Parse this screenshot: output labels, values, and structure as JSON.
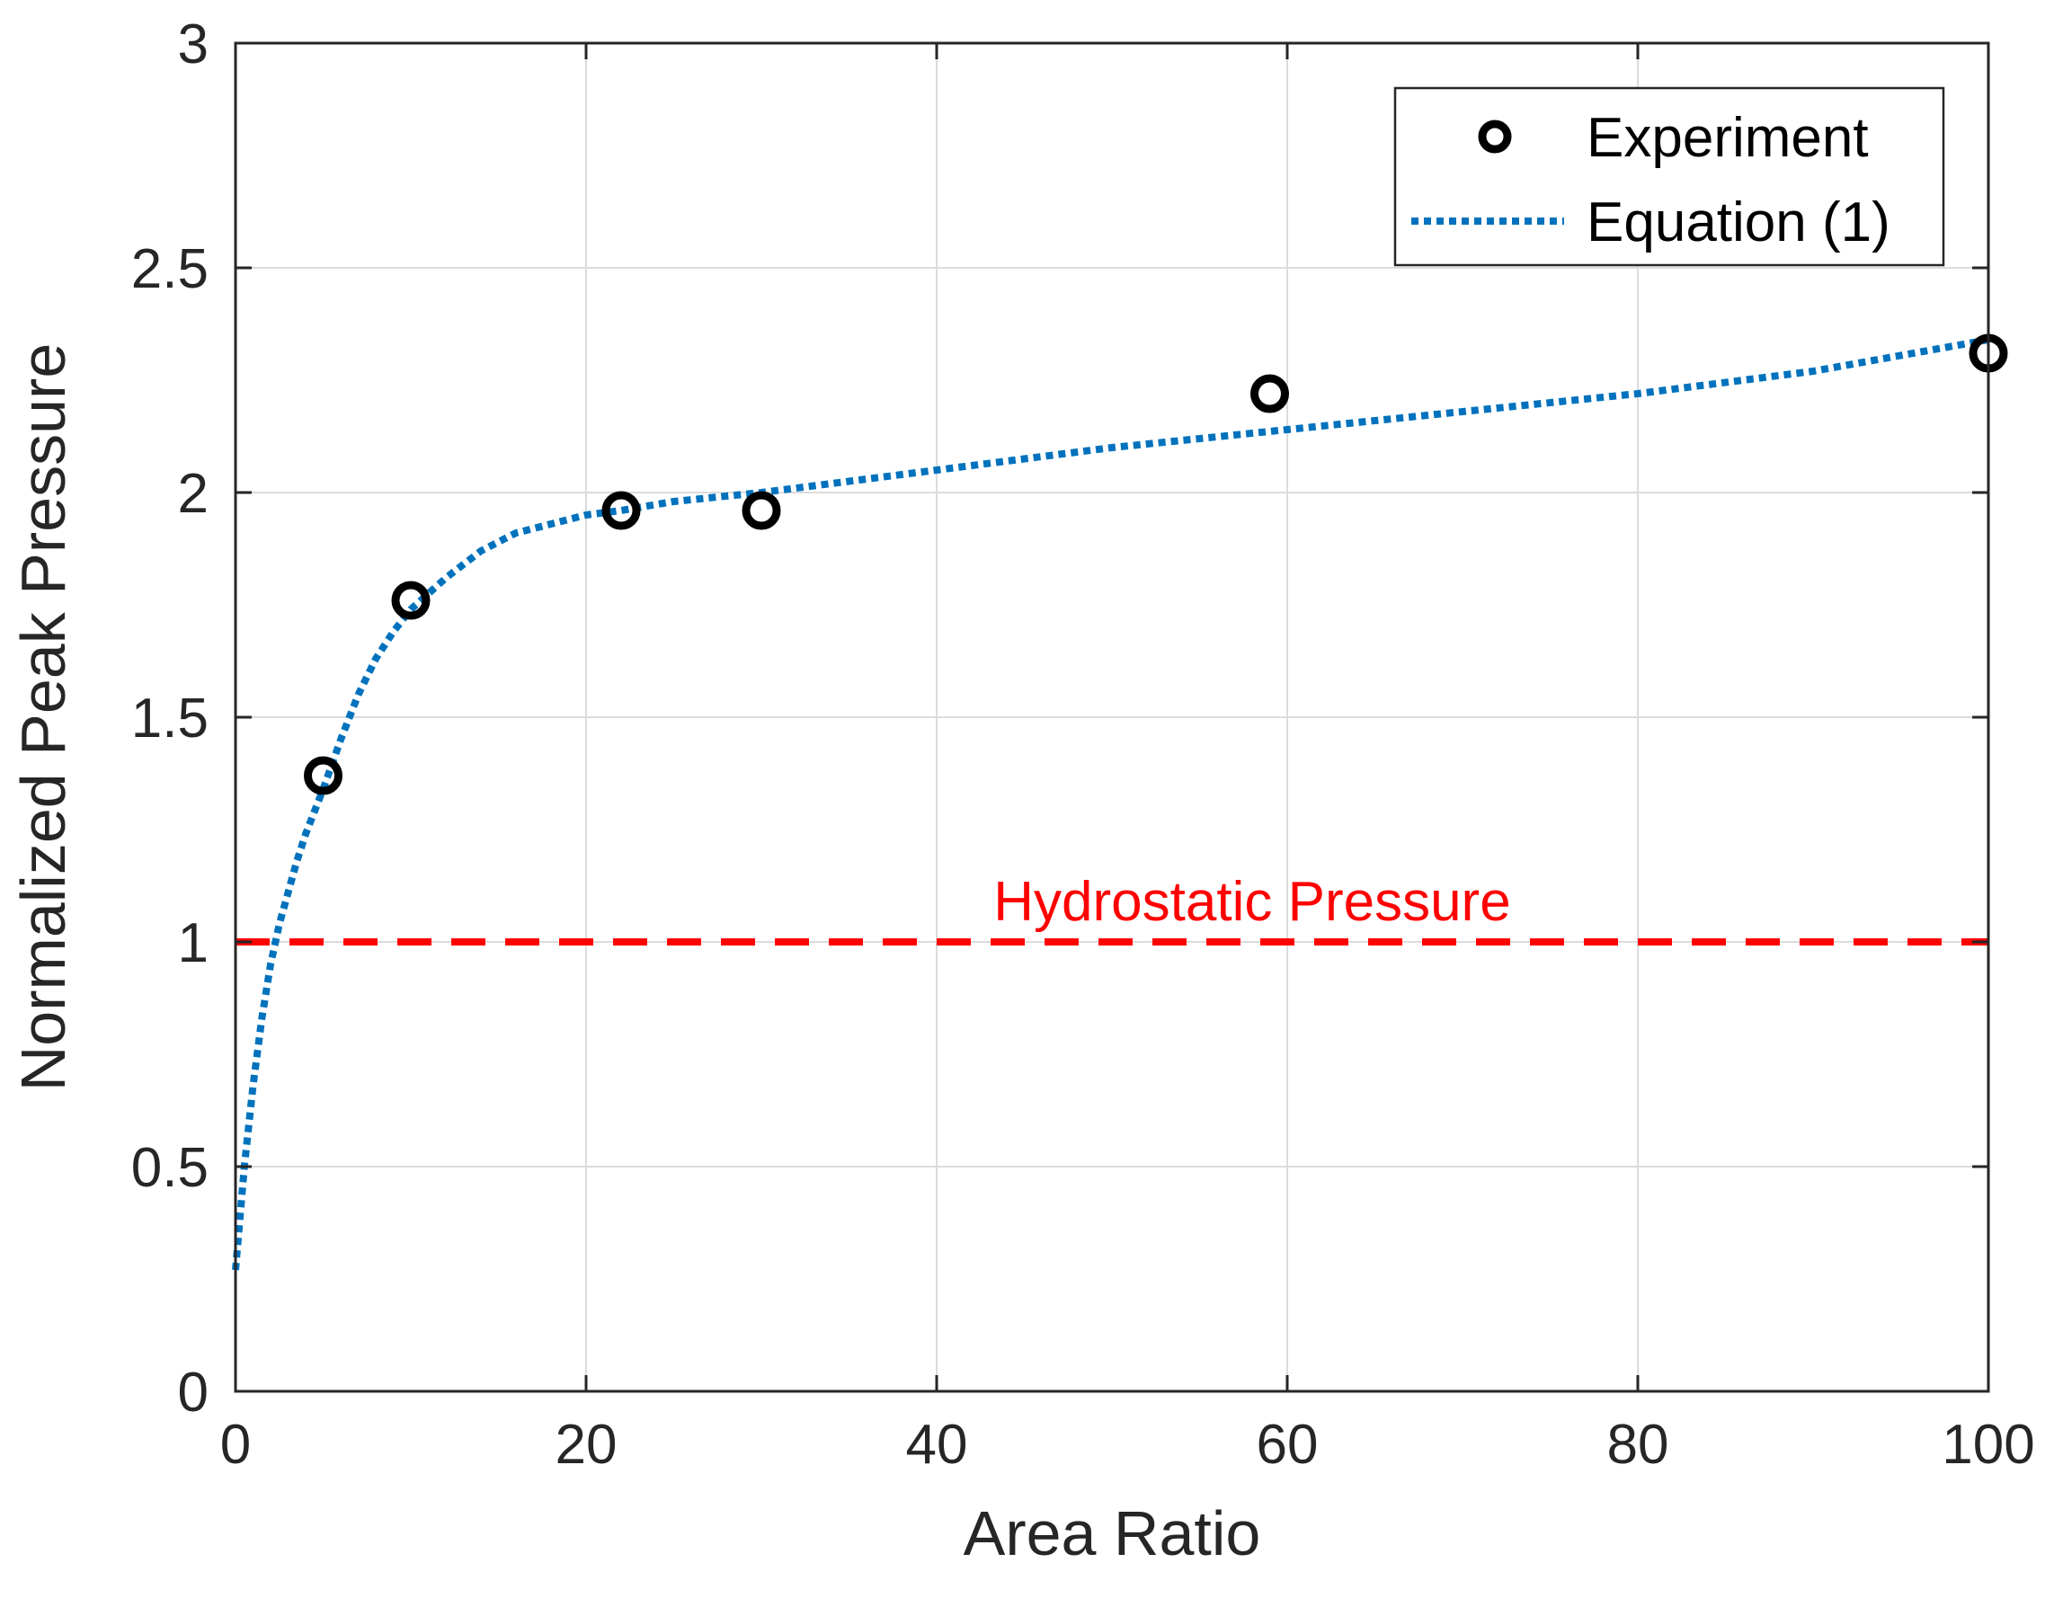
{
  "chart_data": {
    "type": "scatter",
    "title": "",
    "xlabel": "Area Ratio",
    "ylabel": "Normalized Peak Pressure",
    "xlim": [
      0,
      100
    ],
    "ylim": [
      0,
      3
    ],
    "xticks": [
      0,
      20,
      40,
      60,
      80,
      100
    ],
    "yticks": [
      0,
      0.5,
      1,
      1.5,
      2,
      2.5,
      3
    ],
    "xtick_labels": [
      "0",
      "20",
      "40",
      "60",
      "80",
      "100"
    ],
    "ytick_labels": [
      "0",
      "0.5",
      "1",
      "1.5",
      "2",
      "2.5",
      "3"
    ],
    "grid": true,
    "legend_position": "top-right",
    "series": [
      {
        "name": "Experiment",
        "style": "open-circle",
        "color": "#000000",
        "x": [
          5,
          10,
          22,
          30,
          59,
          100
        ],
        "y": [
          1.37,
          1.76,
          1.96,
          1.96,
          2.22,
          2.31
        ]
      },
      {
        "name": "Equation (1)",
        "style": "dotted-line",
        "color": "#0072BD",
        "x": [
          0,
          0.5,
          1,
          1.5,
          2,
          2.5,
          3,
          3.5,
          4,
          5,
          6,
          7,
          8,
          9,
          10,
          12,
          14,
          16,
          18,
          20,
          22,
          25,
          30,
          40,
          50,
          60,
          70,
          80,
          90,
          100
        ],
        "y": [
          0.27,
          0.5,
          0.68,
          0.83,
          0.95,
          1.04,
          1.11,
          1.18,
          1.24,
          1.34,
          1.45,
          1.55,
          1.63,
          1.69,
          1.74,
          1.81,
          1.87,
          1.91,
          1.93,
          1.95,
          1.96,
          1.98,
          2.0,
          2.05,
          2.1,
          2.14,
          2.18,
          2.22,
          2.27,
          2.34
        ]
      }
    ],
    "reference_lines": [
      {
        "name": "Hydrostatic Pressure",
        "axis": "y",
        "value": 1,
        "style": "dashed",
        "color": "#FF0000"
      }
    ],
    "annotations": [
      {
        "text": "Hydrostatic Pressure",
        "x": 58,
        "y": 1.04,
        "color": "#FF0000"
      }
    ]
  }
}
